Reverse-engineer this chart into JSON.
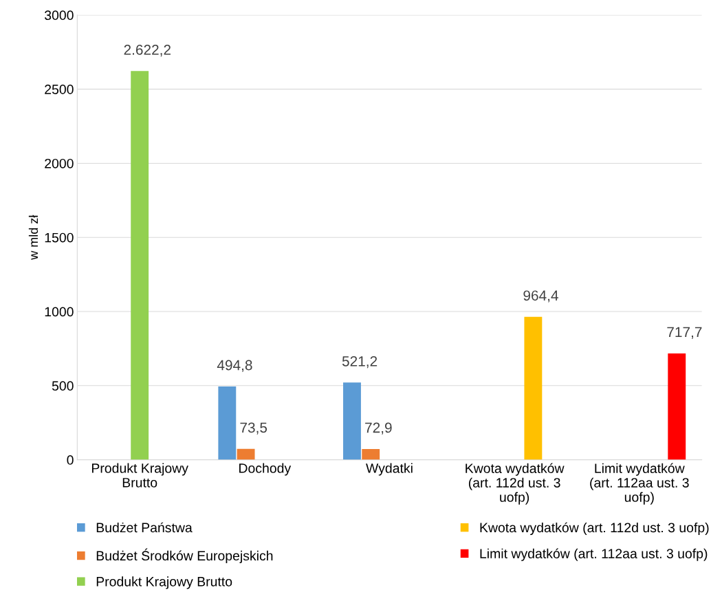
{
  "chart_data": {
    "type": "bar",
    "ylabel": "w mld zł",
    "categories": [
      "Produkt Krajowy\nBrutto",
      "Dochody",
      "Wydatki",
      "Kwota wydatków\n(art. 112d ust. 3\nuofp)",
      "Limit wydatków\n(art. 112aa ust. 3\nuofp)"
    ],
    "series": [
      {
        "name": "Budżet Państwa",
        "color": "#5b9bd5",
        "values": [
          null,
          494.8,
          521.2,
          null,
          null
        ],
        "value_labels": [
          null,
          "494,8",
          "521,2",
          null,
          null
        ]
      },
      {
        "name": "Budżet Środków Europejskich",
        "color": "#ed7d31",
        "values": [
          null,
          73.5,
          72.9,
          null,
          null
        ],
        "value_labels": [
          null,
          "73,5",
          "72,9",
          null,
          null
        ]
      },
      {
        "name": "Produkt Krajowy Brutto",
        "color": "#92d050",
        "values": [
          2622.2,
          null,
          null,
          null,
          null
        ],
        "value_labels": [
          "2.622,2",
          null,
          null,
          null,
          null
        ]
      },
      {
        "name": "Kwota wydatków (art. 112d ust. 3 uofp)",
        "color": "#ffc000",
        "values": [
          null,
          null,
          null,
          964.4,
          null
        ],
        "value_labels": [
          null,
          null,
          null,
          "964,4",
          null
        ]
      },
      {
        "name": "Limit wydatków (art. 112aa ust. 3 uofp)",
        "color": "#ff0000",
        "values": [
          null,
          null,
          null,
          null,
          717.7
        ],
        "value_labels": [
          null,
          null,
          null,
          null,
          "717,7"
        ]
      }
    ],
    "ylim": [
      0,
      3000
    ],
    "yticks": [
      0,
      500,
      1000,
      1500,
      2000,
      2500,
      3000
    ],
    "grid": "y",
    "legend": "bottom"
  }
}
